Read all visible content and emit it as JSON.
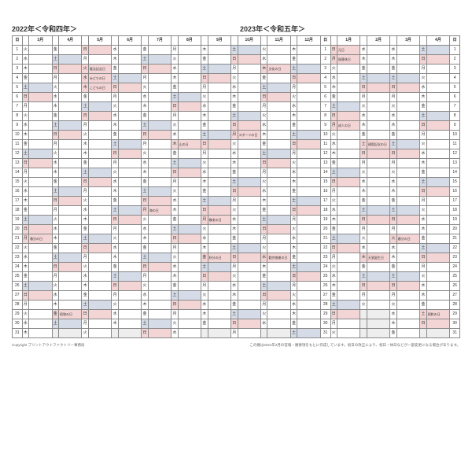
{
  "yearLeft": "2022年＜令和四年＞",
  "yearRight": "2023年＜令和五年＞",
  "dayHeader": "日",
  "months": [
    "3月",
    "4月",
    "5月",
    "6月",
    "7月",
    "8月",
    "9月",
    "10月",
    "11月",
    "12月",
    "1月",
    "2月",
    "3月",
    "4月"
  ],
  "yearSplitIndex": 10,
  "dowLabels": [
    "日",
    "月",
    "火",
    "水",
    "木",
    "金",
    "土"
  ],
  "monthStarts": [
    2,
    5,
    0,
    3,
    5,
    1,
    4,
    6,
    2,
    4,
    0,
    3,
    3,
    6
  ],
  "monthLengths": [
    31,
    30,
    31,
    30,
    31,
    31,
    30,
    31,
    30,
    31,
    31,
    28,
    31,
    30
  ],
  "holidays": {
    "0": {
      "21": "春分の日"
    },
    "1": {
      "29": "昭和の日"
    },
    "2": {
      "3": "憲法記念日",
      "4": "みどりの日",
      "5": "こどもの日"
    },
    "4": {
      "18": "海の日"
    },
    "5": {
      "11": "山の日"
    },
    "6": {
      "19": "敬老の日",
      "23": "秋分の日"
    },
    "7": {
      "10": "スポーツの日"
    },
    "8": {
      "3": "文化の日",
      "23": "勤労感謝の日"
    },
    "10": {
      "1": "元日",
      "2": "振替休日",
      "9": "成人の日"
    },
    "11": {
      "11": "建国記念の日",
      "23": "天皇誕生日"
    },
    "12": {
      "21": "春分の日"
    },
    "13": {
      "29": "昭和の日"
    }
  },
  "colors": {
    "sun": "#f4d5d5",
    "sat": "#d5dce8",
    "blank": "#eeeeee"
  },
  "footerLeft": "Copyright プリントアウトファクトリー事務局",
  "footerRight": "この暦は2021年2月の官報・暦要項をもとに作成しています。祝日の改正により、祝日・休日などが一部変更になる場合があります。"
}
